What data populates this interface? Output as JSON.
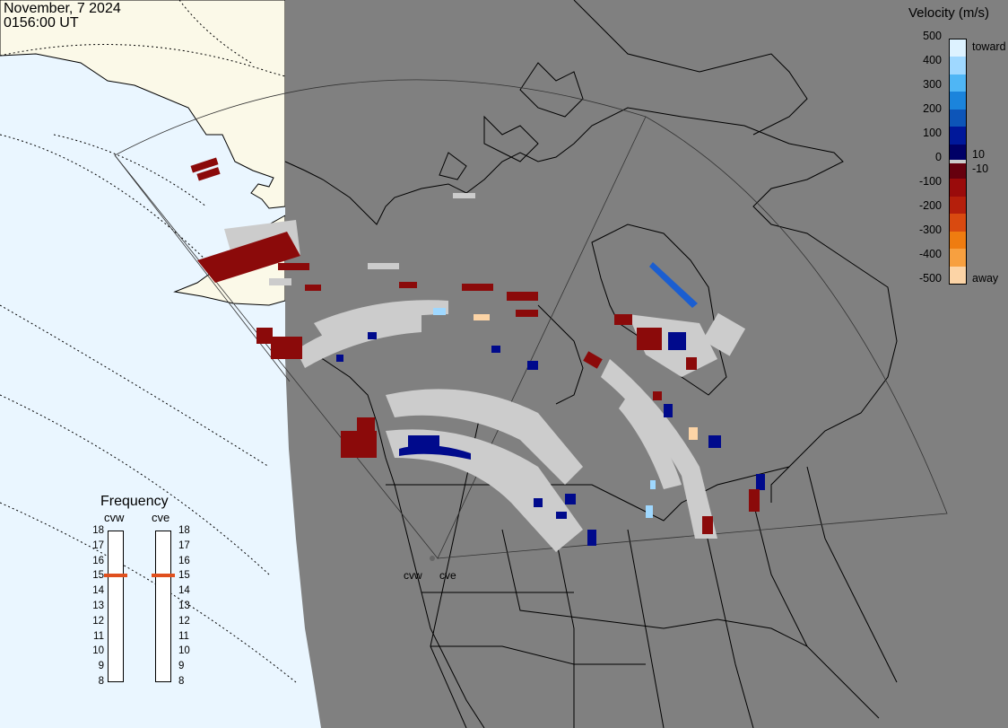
{
  "header": {
    "date": "November, 7 2024",
    "time": "0156:00 UT"
  },
  "velocity_scale": {
    "title": "Velocity (m/s)",
    "ticks": [
      "500",
      "400",
      "300",
      "200",
      "100",
      "0",
      "-100",
      "-200",
      "-300",
      "-400",
      "-500"
    ],
    "side_labels": {
      "toward": "toward",
      "ten": "10",
      "minus_ten": "-10",
      "away": "away"
    },
    "colors": [
      "#ddf2ff",
      "#9fd8ff",
      "#4fb6f5",
      "#1b84dc",
      "#0d55b8",
      "#00189a",
      "#000066",
      "#66000e",
      "#9a0b0b",
      "#b51f0c",
      "#d94a10",
      "#ef7c10",
      "#f7a040",
      "#fcd4a6"
    ]
  },
  "frequency": {
    "title": "Frequency",
    "radars": [
      "cvw",
      "cve"
    ],
    "scale": [
      "18",
      "17",
      "16",
      "15",
      "14",
      "13",
      "12",
      "11",
      "10",
      "9",
      "8"
    ],
    "cvw_value": 15,
    "cve_value": 15
  },
  "map_labels": {
    "site_cvw": "cvw",
    "site_cve": "cve"
  },
  "colors": {
    "ocean_day": "#eaf6ff",
    "land_day": "#fbf9e8",
    "night_shade": "#808080",
    "ground_scatter": "#cccccc"
  }
}
